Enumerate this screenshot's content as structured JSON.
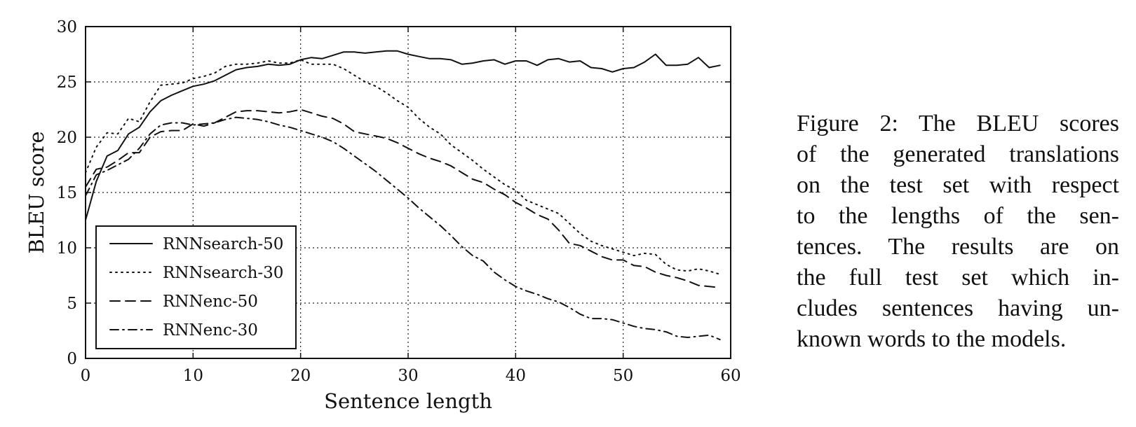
{
  "caption": {
    "lines": [
      "Figure 2:  The BLEU scores",
      "of the generated translations",
      "on the test set with respect",
      "to the lengths of the sen-",
      "tences.  The results are on",
      "the full test set which in-",
      "cludes sentences having un-",
      "known words to the models."
    ]
  },
  "chart_data": {
    "type": "line",
    "title": "",
    "xlabel": "Sentence length",
    "ylabel": "BLEU score",
    "xlim": [
      0,
      60
    ],
    "ylim": [
      0,
      30
    ],
    "xticks": [
      0,
      10,
      20,
      30,
      40,
      50,
      60
    ],
    "yticks": [
      0,
      5,
      10,
      15,
      20,
      25,
      30
    ],
    "grid": true,
    "legend_position": "lower-left",
    "series": [
      {
        "name": "RNNsearch-50",
        "style": "solid",
        "x": [
          0,
          1,
          2,
          3,
          4,
          5,
          6,
          7,
          8,
          9,
          10,
          11,
          12,
          13,
          14,
          15,
          16,
          17,
          18,
          19,
          20,
          21,
          22,
          23,
          24,
          25,
          26,
          27,
          28,
          29,
          30,
          31,
          32,
          33,
          34,
          35,
          36,
          37,
          38,
          39,
          40,
          41,
          42,
          43,
          44,
          45,
          46,
          47,
          48,
          49,
          50,
          51,
          52,
          53,
          54,
          55,
          56,
          57,
          58,
          59
        ],
        "values": [
          12.5,
          16.0,
          18.3,
          18.8,
          20.3,
          20.9,
          22.3,
          23.3,
          23.8,
          24.2,
          24.6,
          24.8,
          25.1,
          25.6,
          26.1,
          26.3,
          26.4,
          26.6,
          26.5,
          26.6,
          27.0,
          27.2,
          27.1,
          27.4,
          27.7,
          27.7,
          27.6,
          27.7,
          27.8,
          27.8,
          27.5,
          27.3,
          27.1,
          27.1,
          27.0,
          26.6,
          26.7,
          26.9,
          27.0,
          26.6,
          26.9,
          26.9,
          26.5,
          27.0,
          27.1,
          26.8,
          26.9,
          26.3,
          26.2,
          25.9,
          26.2,
          26.3,
          26.8,
          27.5,
          26.5,
          26.5,
          26.6,
          27.2,
          26.3,
          26.5
        ]
      },
      {
        "name": "RNNsearch-30",
        "style": "dotted",
        "x": [
          0,
          1,
          2,
          3,
          4,
          5,
          6,
          7,
          8,
          9,
          10,
          11,
          12,
          13,
          14,
          15,
          16,
          17,
          18,
          19,
          20,
          21,
          22,
          23,
          24,
          25,
          26,
          27,
          28,
          29,
          30,
          31,
          32,
          33,
          34,
          35,
          36,
          37,
          38,
          39,
          40,
          41,
          42,
          43,
          44,
          45,
          46,
          47,
          48,
          49,
          50,
          51,
          52,
          53,
          54,
          55,
          56,
          57,
          58,
          59
        ],
        "values": [
          16.8,
          19.1,
          20.4,
          20.3,
          21.7,
          21.4,
          23.2,
          24.7,
          24.8,
          24.9,
          25.3,
          25.5,
          25.8,
          26.4,
          26.6,
          26.6,
          26.7,
          26.9,
          26.7,
          26.7,
          27.0,
          26.6,
          26.6,
          26.6,
          26.2,
          25.6,
          25.0,
          24.6,
          24.0,
          23.3,
          22.7,
          21.7,
          20.9,
          20.3,
          19.3,
          18.6,
          17.9,
          17.1,
          16.4,
          15.7,
          15.2,
          14.3,
          13.9,
          13.5,
          13.1,
          12.2,
          11.3,
          10.6,
          10.2,
          9.9,
          9.6,
          9.3,
          9.5,
          9.4,
          8.5,
          8.0,
          7.9,
          8.1,
          7.9,
          7.6
        ]
      },
      {
        "name": "RNNenc-50",
        "style": "dashed",
        "x": [
          0,
          1,
          2,
          3,
          4,
          5,
          6,
          7,
          8,
          9,
          10,
          11,
          12,
          13,
          14,
          15,
          16,
          17,
          18,
          19,
          20,
          21,
          22,
          23,
          24,
          25,
          26,
          27,
          28,
          29,
          30,
          31,
          32,
          33,
          34,
          35,
          36,
          37,
          38,
          39,
          40,
          41,
          42,
          43,
          44,
          45,
          46,
          47,
          48,
          49,
          50,
          51,
          52,
          53,
          54,
          55,
          56,
          57,
          58,
          59
        ],
        "values": [
          15.5,
          17.1,
          17.3,
          17.9,
          18.6,
          18.6,
          20.0,
          20.5,
          20.6,
          20.6,
          21.2,
          21.0,
          21.3,
          21.8,
          22.3,
          22.4,
          22.4,
          22.3,
          22.2,
          22.3,
          22.5,
          22.2,
          21.9,
          21.7,
          21.2,
          20.5,
          20.3,
          20.1,
          19.9,
          19.5,
          19.0,
          18.5,
          18.1,
          17.8,
          17.4,
          16.8,
          16.2,
          15.9,
          15.3,
          14.8,
          14.1,
          13.6,
          13.0,
          12.6,
          11.6,
          10.4,
          10.2,
          9.7,
          9.2,
          8.9,
          8.9,
          8.4,
          8.3,
          7.8,
          7.5,
          7.3,
          7.0,
          6.6,
          6.5,
          6.4
        ]
      },
      {
        "name": "RNNenc-30",
        "style": "dashdot",
        "x": [
          0,
          1,
          2,
          3,
          4,
          5,
          6,
          7,
          8,
          9,
          10,
          11,
          12,
          13,
          14,
          15,
          16,
          17,
          18,
          19,
          20,
          21,
          22,
          23,
          24,
          25,
          26,
          27,
          28,
          29,
          30,
          31,
          32,
          33,
          34,
          35,
          36,
          37,
          38,
          39,
          40,
          41,
          42,
          43,
          44,
          45,
          46,
          47,
          48,
          49,
          50,
          51,
          52,
          53,
          54,
          55,
          56,
          57,
          58,
          59
        ],
        "values": [
          14.7,
          16.6,
          17.0,
          17.5,
          18.0,
          19.0,
          20.3,
          21.1,
          21.3,
          21.3,
          21.1,
          21.2,
          21.3,
          21.6,
          21.8,
          21.7,
          21.6,
          21.4,
          21.1,
          20.9,
          20.6,
          20.3,
          20.0,
          19.6,
          19.0,
          18.3,
          17.6,
          16.9,
          16.1,
          15.3,
          14.5,
          13.6,
          12.8,
          12.0,
          11.1,
          10.1,
          9.3,
          8.8,
          7.8,
          7.1,
          6.5,
          6.1,
          5.8,
          5.4,
          5.1,
          4.6,
          4.0,
          3.6,
          3.6,
          3.5,
          3.2,
          2.9,
          2.7,
          2.6,
          2.4,
          2.0,
          1.9,
          2.0,
          2.1,
          1.7
        ]
      }
    ]
  }
}
